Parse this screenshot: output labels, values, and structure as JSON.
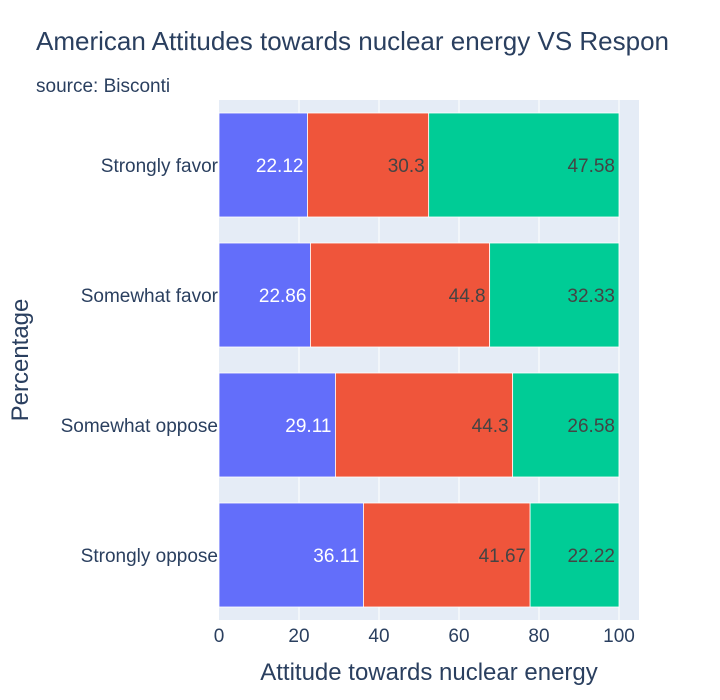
{
  "chart_data": {
    "type": "bar",
    "orientation": "horizontal",
    "barmode": "stack",
    "title": "American Attitudes towards nuclear energy VS Respon",
    "subtitle": "source: Bisconti",
    "xlabel": "Attitude towards nuclear energy",
    "ylabel": "Percentage",
    "xlim": [
      0,
      105
    ],
    "xticks": [
      "0",
      "20",
      "40",
      "60",
      "80",
      "100"
    ],
    "categories": [
      "Strongly favor",
      "Somewhat favor",
      "Somewhat oppose",
      "Strongly oppose"
    ],
    "series": [
      {
        "values": [
          22.12,
          22.86,
          29.11,
          36.11
        ],
        "color": "#636efa",
        "label_color": "#ffffff"
      },
      {
        "values": [
          30.3,
          44.8,
          44.3,
          41.67
        ],
        "color": "#ef553b",
        "label_color": "#444444"
      },
      {
        "values": [
          47.58,
          32.33,
          26.58,
          22.22
        ],
        "color": "#00cc96",
        "label_color": "#444444"
      }
    ],
    "grid": true,
    "plot_bgcolor": "#e5ecf6",
    "legend": "none"
  }
}
